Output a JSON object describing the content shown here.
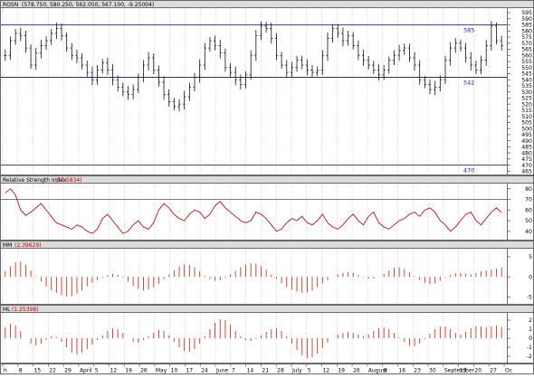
{
  "chart_data": [
    {
      "type": "ohlc",
      "symbol": "ROSN",
      "header_values": "(578.750, 580.250, 562.050, 567.100, -9.25004)",
      "y_ticks": [
        465,
        470,
        475,
        480,
        485,
        490,
        495,
        500,
        505,
        510,
        515,
        520,
        525,
        530,
        535,
        540,
        545,
        550,
        555,
        560,
        565,
        570,
        575,
        580,
        585,
        590,
        595
      ],
      "ylim": [
        463,
        598
      ],
      "levels": [
        {
          "value": 585,
          "label": "585"
        },
        {
          "value": 542,
          "label": "542"
        },
        {
          "value": 470,
          "label": "470"
        }
      ],
      "x_labels": [
        "h",
        "8",
        "15",
        "22",
        "29",
        "April",
        "5",
        "12",
        "19",
        "26",
        "May",
        "10",
        "17",
        "24",
        "June",
        "7",
        "14",
        "21",
        "28",
        "July",
        "5",
        "12",
        "19",
        "26",
        "August",
        "9",
        "16",
        "23",
        "30",
        "September",
        "13",
        "20",
        "27",
        "Oc"
      ],
      "close_series": [
        560,
        572,
        578,
        576,
        566,
        552,
        562,
        568,
        572,
        578,
        582,
        576,
        566,
        560,
        558,
        552,
        546,
        540,
        548,
        554,
        548,
        540,
        534,
        530,
        528,
        532,
        542,
        552,
        558,
        548,
        538,
        528,
        522,
        518,
        520,
        526,
        534,
        542,
        552,
        566,
        572,
        568,
        562,
        550,
        546,
        540,
        536,
        544,
        560,
        576,
        584,
        582,
        574,
        560,
        552,
        546,
        550,
        556,
        552,
        548,
        546,
        548,
        560,
        574,
        582,
        578,
        572,
        576,
        568,
        560,
        556,
        552,
        548,
        544,
        548,
        556,
        560,
        564,
        566,
        558,
        552,
        540,
        536,
        532,
        534,
        540,
        556,
        566,
        570,
        566,
        558,
        552,
        548,
        556,
        568,
        584,
        572,
        568
      ]
    },
    {
      "type": "line",
      "title": "Relative Strength Index",
      "header_value": "(57.5834)",
      "y_ticks": [
        40,
        50,
        60,
        70,
        80
      ],
      "ylim": [
        33,
        84
      ],
      "level": 70,
      "values": [
        76,
        80,
        74,
        60,
        55,
        58,
        62,
        66,
        60,
        54,
        48,
        46,
        44,
        42,
        46,
        44,
        40,
        38,
        42,
        52,
        56,
        50,
        44,
        38,
        40,
        46,
        50,
        44,
        42,
        48,
        60,
        66,
        62,
        56,
        52,
        50,
        56,
        60,
        58,
        52,
        56,
        64,
        68,
        62,
        58,
        54,
        50,
        48,
        50,
        58,
        56,
        52,
        46,
        40,
        42,
        48,
        52,
        50,
        54,
        48,
        46,
        50,
        56,
        48,
        44,
        42,
        46,
        52,
        56,
        50,
        46,
        54,
        58,
        48,
        44,
        42,
        46,
        50,
        52,
        56,
        58,
        54,
        60,
        62,
        58,
        50,
        46,
        40,
        44,
        50,
        56,
        58,
        50,
        46,
        52,
        58,
        62,
        57.6
      ]
    },
    {
      "type": "bar",
      "title": "MM",
      "header_value": "(2.39629)",
      "y_ticks": [
        -5,
        0,
        5
      ],
      "ylim": [
        -6.5,
        6.8
      ],
      "values": [
        1.5,
        2.6,
        3.6,
        3.8,
        3.0,
        1.6,
        0.2,
        -1.2,
        -2.4,
        -3.3,
        -4.0,
        -4.6,
        -4.9,
        -4.8,
        -4.2,
        -3.4,
        -2.4,
        -1.5,
        -0.8,
        -0.2,
        0.4,
        0.8,
        0.5,
        -0.2,
        -1.2,
        -2.2,
        -3.0,
        -3.4,
        -3.2,
        -2.6,
        -1.7,
        -0.6,
        0.6,
        1.7,
        2.6,
        3.1,
        3.0,
        2.4,
        1.4,
        0.3,
        -0.6,
        -1.0,
        -0.8,
        -0.2,
        0.6,
        1.5,
        2.4,
        3.0,
        3.4,
        3.3,
        2.7,
        1.8,
        0.6,
        -0.5,
        -1.6,
        -2.5,
        -3.2,
        -3.7,
        -4.0,
        -3.9,
        -3.4,
        -2.6,
        -1.7,
        -0.8,
        0.0,
        0.6,
        1.0,
        1.2,
        1.0,
        0.5,
        -0.1,
        -0.5,
        -0.4,
        0.1,
        0.8,
        1.6,
        2.2,
        2.4,
        2.0,
        1.2,
        0.2,
        -0.8,
        -1.5,
        -1.8,
        -1.6,
        -1.0,
        -0.2,
        0.5,
        0.9,
        1.0,
        0.8,
        0.6,
        0.9,
        1.3,
        1.6,
        1.8,
        2.1,
        2.4
      ]
    },
    {
      "type": "bar",
      "title": "ML",
      "header_value": "(1.25398)",
      "y_ticks": [
        -2,
        -1,
        0,
        1,
        2
      ],
      "ylim": [
        -2.6,
        2.7
      ],
      "values": [
        1.2,
        1.6,
        1.4,
        0.8,
        0.0,
        -0.6,
        -0.8,
        -0.6,
        -0.2,
        0.2,
        0.1,
        -0.4,
        -1.0,
        -1.6,
        -1.8,
        -1.6,
        -1.2,
        -0.7,
        -0.2,
        0.3,
        0.8,
        1.1,
        1.0,
        0.6,
        0.0,
        -0.4,
        -0.5,
        -0.2,
        0.2,
        0.6,
        0.9,
        0.8,
        0.3,
        -0.4,
        -1.0,
        -1.4,
        -1.5,
        -1.2,
        -0.6,
        0.2,
        1.0,
        1.7,
        2.1,
        2.0,
        1.5,
        0.8,
        0.2,
        -0.2,
        -0.3,
        -0.1,
        0.3,
        0.7,
        1.0,
        1.1,
        0.8,
        0.2,
        -0.6,
        -1.3,
        -1.9,
        -2.2,
        -2.1,
        -1.7,
        -1.1,
        -0.5,
        0.0,
        0.4,
        0.6,
        0.7,
        0.6,
        0.4,
        0.2,
        0.4,
        0.8,
        1.1,
        1.2,
        1.0,
        0.6,
        0.1,
        -0.4,
        -0.8,
        -0.9,
        -0.6,
        -0.1,
        0.5,
        1.0,
        1.3,
        1.3,
        1.0,
        0.6,
        0.4,
        0.7,
        1.1,
        1.3,
        1.3,
        1.2,
        1.3,
        1.4,
        1.25
      ]
    }
  ]
}
